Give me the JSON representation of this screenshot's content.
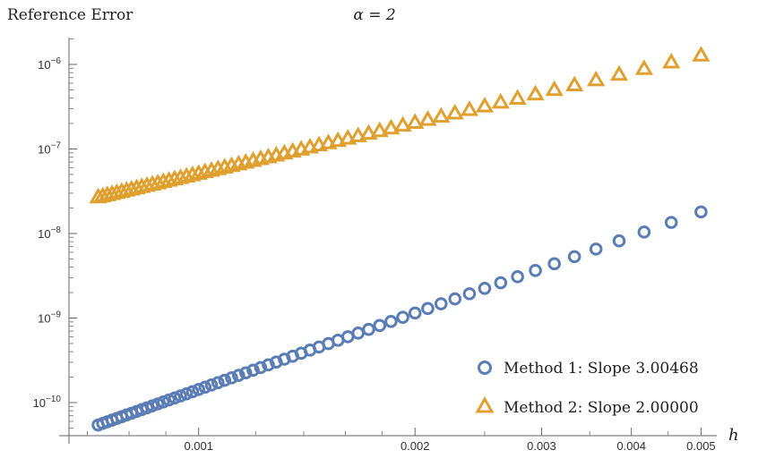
{
  "chart_data": {
    "type": "scatter",
    "title": "α = 2",
    "ylabel": "Reference Error",
    "xlabel": "h",
    "x_scale": "log",
    "y_scale": "log",
    "xlim": [
      0.00068,
      0.00505
    ],
    "ylim": [
      5e-11,
      2.2e-06
    ],
    "x_ticks": [
      {
        "value": 0.001,
        "label": "0.001"
      },
      {
        "value": 0.002,
        "label": "0.002"
      },
      {
        "value": 0.003,
        "label": "0.003"
      },
      {
        "value": 0.004,
        "label": "0.004"
      },
      {
        "value": 0.005,
        "label": "0.005"
      }
    ],
    "y_ticks": [
      {
        "value": 1e-10,
        "base": "10",
        "exp": "−10"
      },
      {
        "value": 1e-09,
        "base": "10",
        "exp": "−9"
      },
      {
        "value": 1e-08,
        "base": "10",
        "exp": "−8"
      },
      {
        "value": 1e-07,
        "base": "10",
        "exp": "−7"
      },
      {
        "value": 1e-06,
        "base": "10",
        "exp": "−6"
      }
    ],
    "legend_position": "bottom-right",
    "series": [
      {
        "name": "Method 1: Slope 3.00468",
        "marker": "circle",
        "color": "#5b7db5",
        "slope": 3.00468,
        "ref_x": 0.005,
        "ref_y": 1.8e-08
      },
      {
        "name": "Method 2: Slope 2.00000",
        "marker": "triangle",
        "color": "#e0a030",
        "slope": 2.0,
        "ref_x": 0.005,
        "ref_y": 1.3e-06
      }
    ],
    "x": [
      0.005,
      0.0045454545,
      0.0041666667,
      0.0038461538,
      0.0035714286,
      0.0033333333,
      0.003125,
      0.0029411765,
      0.0027777778,
      0.0026315789,
      0.0025,
      0.002380952,
      0.0022727273,
      0.002173913,
      0.0020833333,
      0.002,
      0.0019230769,
      0.0018518519,
      0.0017857143,
      0.0017241379,
      0.0016666667,
      0.0016129032,
      0.0015625,
      0.0015151515,
      0.0014705882,
      0.0014285714,
      0.0013888889,
      0.0013513514,
      0.0013157895,
      0.0012820513,
      0.00125,
      0.0012195122,
      0.0011904762,
      0.0011627907,
      0.0011363636,
      0.0011111111,
      0.0010869565,
      0.0010638298,
      0.0010416667,
      0.0010204082,
      0.001,
      0.0009803922,
      0.0009615385,
      0.0009433962,
      0.0009259259,
      0.0009090909,
      0.0008928571,
      0.000877193,
      0.000862069,
      0.0008474576,
      0.0008333333,
      0.0008196721,
      0.0008064516,
      0.0007936508,
      0.00078125,
      0.0007692308,
      0.0007575758,
      0.0007462687,
      0.0007352941,
      0.0007246377
    ]
  }
}
